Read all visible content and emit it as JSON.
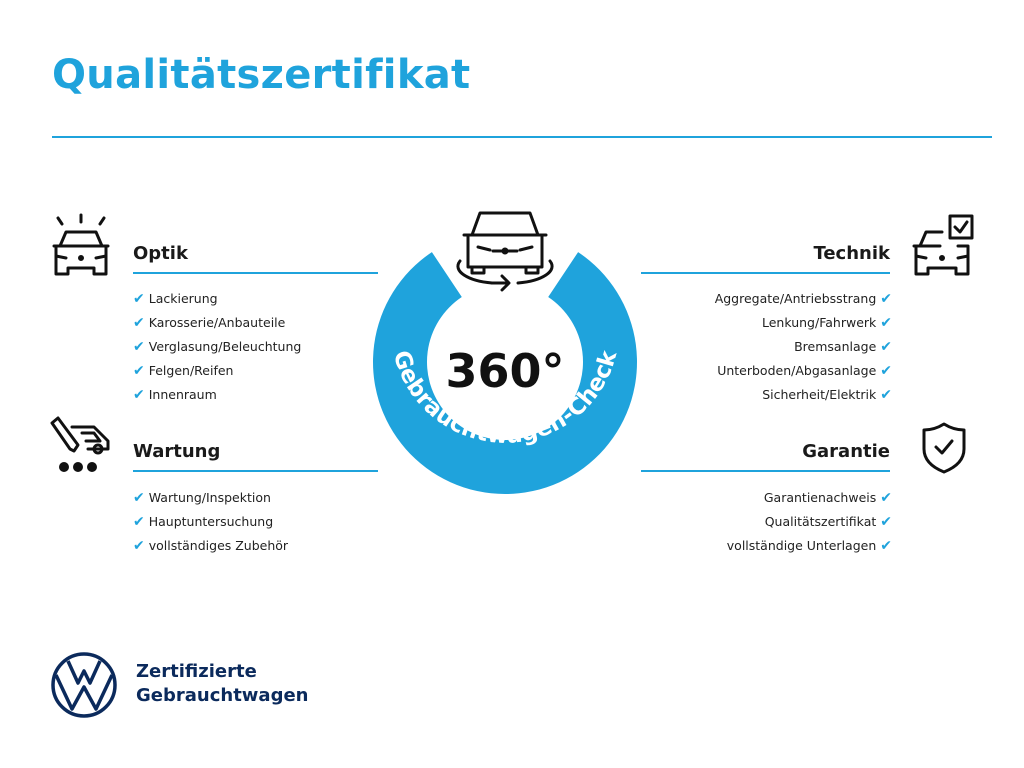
{
  "title": "Qualitätszertifikat",
  "colors": {
    "accent": "#1fa3dc",
    "brand_navy": "#0b2a5c",
    "text": "#1a1a1a"
  },
  "center": {
    "big_label": "360°",
    "ring_label": "Gebrauchtwagen-Check",
    "icon": "car-rotate-icon"
  },
  "check_icon": "✔",
  "sections": {
    "optik": {
      "heading": "Optik",
      "icon": "car-lights-icon",
      "items": [
        "Lackierung",
        "Karosserie/Anbauteile",
        "Verglasung/Beleuchtung",
        "Felgen/Reifen",
        "Innenraum"
      ]
    },
    "wartung": {
      "heading": "Wartung",
      "icon": "car-service-icon",
      "items": [
        "Wartung/Inspektion",
        "Hauptuntersuchung",
        "vollständiges Zubehör"
      ]
    },
    "technik": {
      "heading": "Technik",
      "icon": "car-checklist-icon",
      "items": [
        "Aggregate/Antriebsstrang",
        "Lenkung/Fahrwerk",
        "Bremsanlage",
        "Unterboden/Abgasanlage",
        "Sicherheit/Elektrik"
      ]
    },
    "garantie": {
      "heading": "Garantie",
      "icon": "shield-check-icon",
      "items": [
        "Garantienachweis",
        "Qualitätszertifikat",
        "vollständige Unterlagen"
      ]
    }
  },
  "brand": {
    "logo": "VW",
    "line1": "Zertifizierte",
    "line2": "Gebrauchtwagen"
  }
}
